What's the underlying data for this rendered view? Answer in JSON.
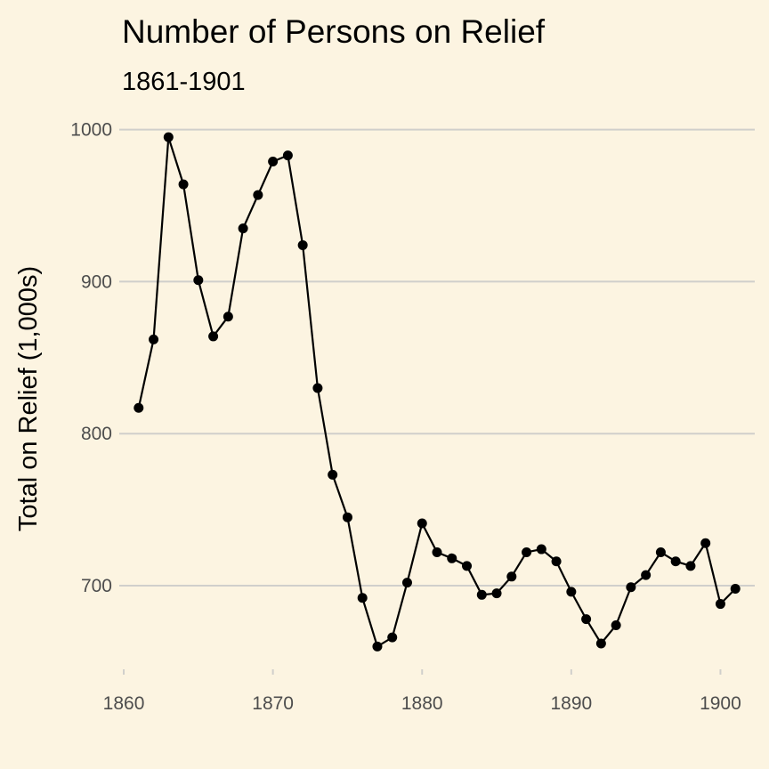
{
  "chart_data": {
    "type": "line",
    "title": "Number of Persons on Relief",
    "subtitle": "1861-1901",
    "xlabel": "",
    "ylabel": "Total on Relief (1,000s)",
    "xlim": [
      1859.7,
      1902.3
    ],
    "ylim": [
      645,
      1015
    ],
    "x_ticks": [
      1860,
      1870,
      1880,
      1890,
      1900
    ],
    "y_ticks": [
      700,
      800,
      900,
      1000
    ],
    "grid": "horizontal major only",
    "legend": "none",
    "series": [
      {
        "x": [
          1861,
          1862,
          1863,
          1864,
          1865,
          1866,
          1867,
          1868,
          1869,
          1870,
          1871,
          1872,
          1873,
          1874,
          1875,
          1876,
          1877,
          1878,
          1879,
          1880,
          1881,
          1882,
          1883,
          1884,
          1885,
          1886,
          1887,
          1888,
          1889,
          1890,
          1891,
          1892,
          1893,
          1894,
          1895,
          1896,
          1897,
          1898,
          1899,
          1900,
          1901
        ],
        "y": [
          817,
          862,
          995,
          964,
          901,
          864,
          877,
          935,
          957,
          979,
          983,
          924,
          830,
          773,
          745,
          692,
          660,
          666,
          702,
          741,
          722,
          718,
          713,
          694,
          695,
          706,
          722,
          724,
          716,
          696,
          678,
          662,
          674,
          699,
          707,
          722,
          716,
          713,
          728,
          688,
          698
        ]
      }
    ]
  },
  "style": {
    "background": "#fcf4e1",
    "line_color": "#000000",
    "point_color": "#000000",
    "grid_color": "#d0cfcb",
    "tick_label_color": "#4d4d4d"
  }
}
